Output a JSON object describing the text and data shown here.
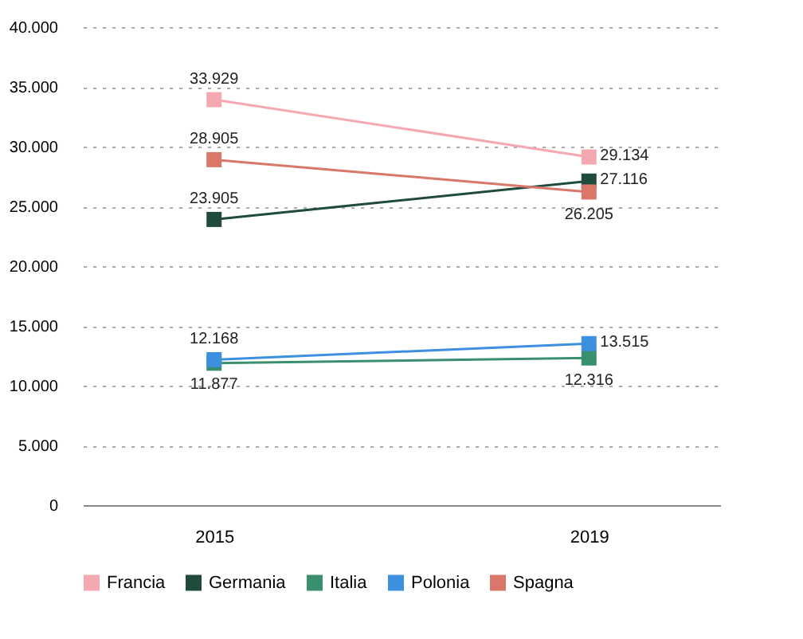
{
  "chart_data": {
    "type": "line",
    "categories": [
      "2015",
      "2019"
    ],
    "series": [
      {
        "name": "Francia",
        "color": "#f4a9b0",
        "values": [
          33929,
          29134
        ],
        "value_labels": [
          "33.929",
          "29.134"
        ]
      },
      {
        "name": "Germania",
        "color": "#1f4a3c",
        "values": [
          23905,
          27116
        ],
        "value_labels": [
          "23.905",
          "27.116"
        ]
      },
      {
        "name": "Italia",
        "color": "#3a8f6f",
        "values": [
          11877,
          12316
        ],
        "value_labels": [
          "11.877",
          "12.316"
        ]
      },
      {
        "name": "Polonia",
        "color": "#3d8fe0",
        "values": [
          12168,
          13515
        ],
        "value_labels": [
          "12.168",
          "13.515"
        ]
      },
      {
        "name": "Spagna",
        "color": "#d9776b",
        "values": [
          28905,
          26205
        ],
        "value_labels": [
          "28.905",
          "26.205"
        ]
      }
    ],
    "ylim": [
      0,
      40000
    ],
    "yticks": [
      0,
      {
        "value": 5000,
        "label": "5.000"
      },
      {
        "value": 10000,
        "label": "10.000"
      },
      {
        "value": 15000,
        "label": "15.000"
      },
      {
        "value": 20000,
        "label": "20.000"
      },
      {
        "value": 25000,
        "label": "25.000"
      },
      {
        "value": 30000,
        "label": "30.000"
      },
      {
        "value": 35000,
        "label": "35.000"
      },
      {
        "value": 40000,
        "label": "40.000"
      }
    ],
    "grid": "y",
    "legend": "bottom",
    "marker": "square",
    "line_style": "solid",
    "data_labels": true
  }
}
